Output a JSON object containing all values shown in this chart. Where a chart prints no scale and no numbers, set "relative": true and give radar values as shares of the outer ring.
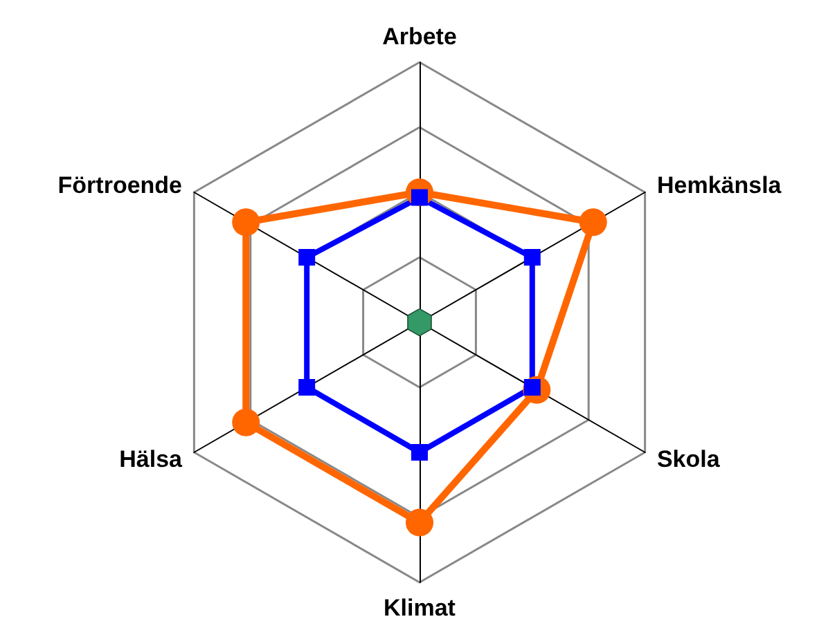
{
  "chart_data": {
    "type": "radar",
    "relative": true,
    "categories": [
      "Arbete",
      "Hemkänsla",
      "Skola",
      "Klimat",
      "Hälsa",
      "Förtroende"
    ],
    "series": [
      {
        "color": "#ff6600",
        "marker": "circle",
        "values": [
          0.5,
          0.77,
          0.52,
          0.77,
          0.77,
          0.77
        ]
      },
      {
        "color": "#0000ff",
        "marker": "square",
        "values": [
          0.48,
          0.5,
          0.5,
          0.5,
          0.5,
          0.5
        ]
      },
      {
        "color": "#339966",
        "marker": "none",
        "values": [
          0.05,
          0.05,
          0.05,
          0.05,
          0.05,
          0.05
        ]
      }
    ]
  }
}
